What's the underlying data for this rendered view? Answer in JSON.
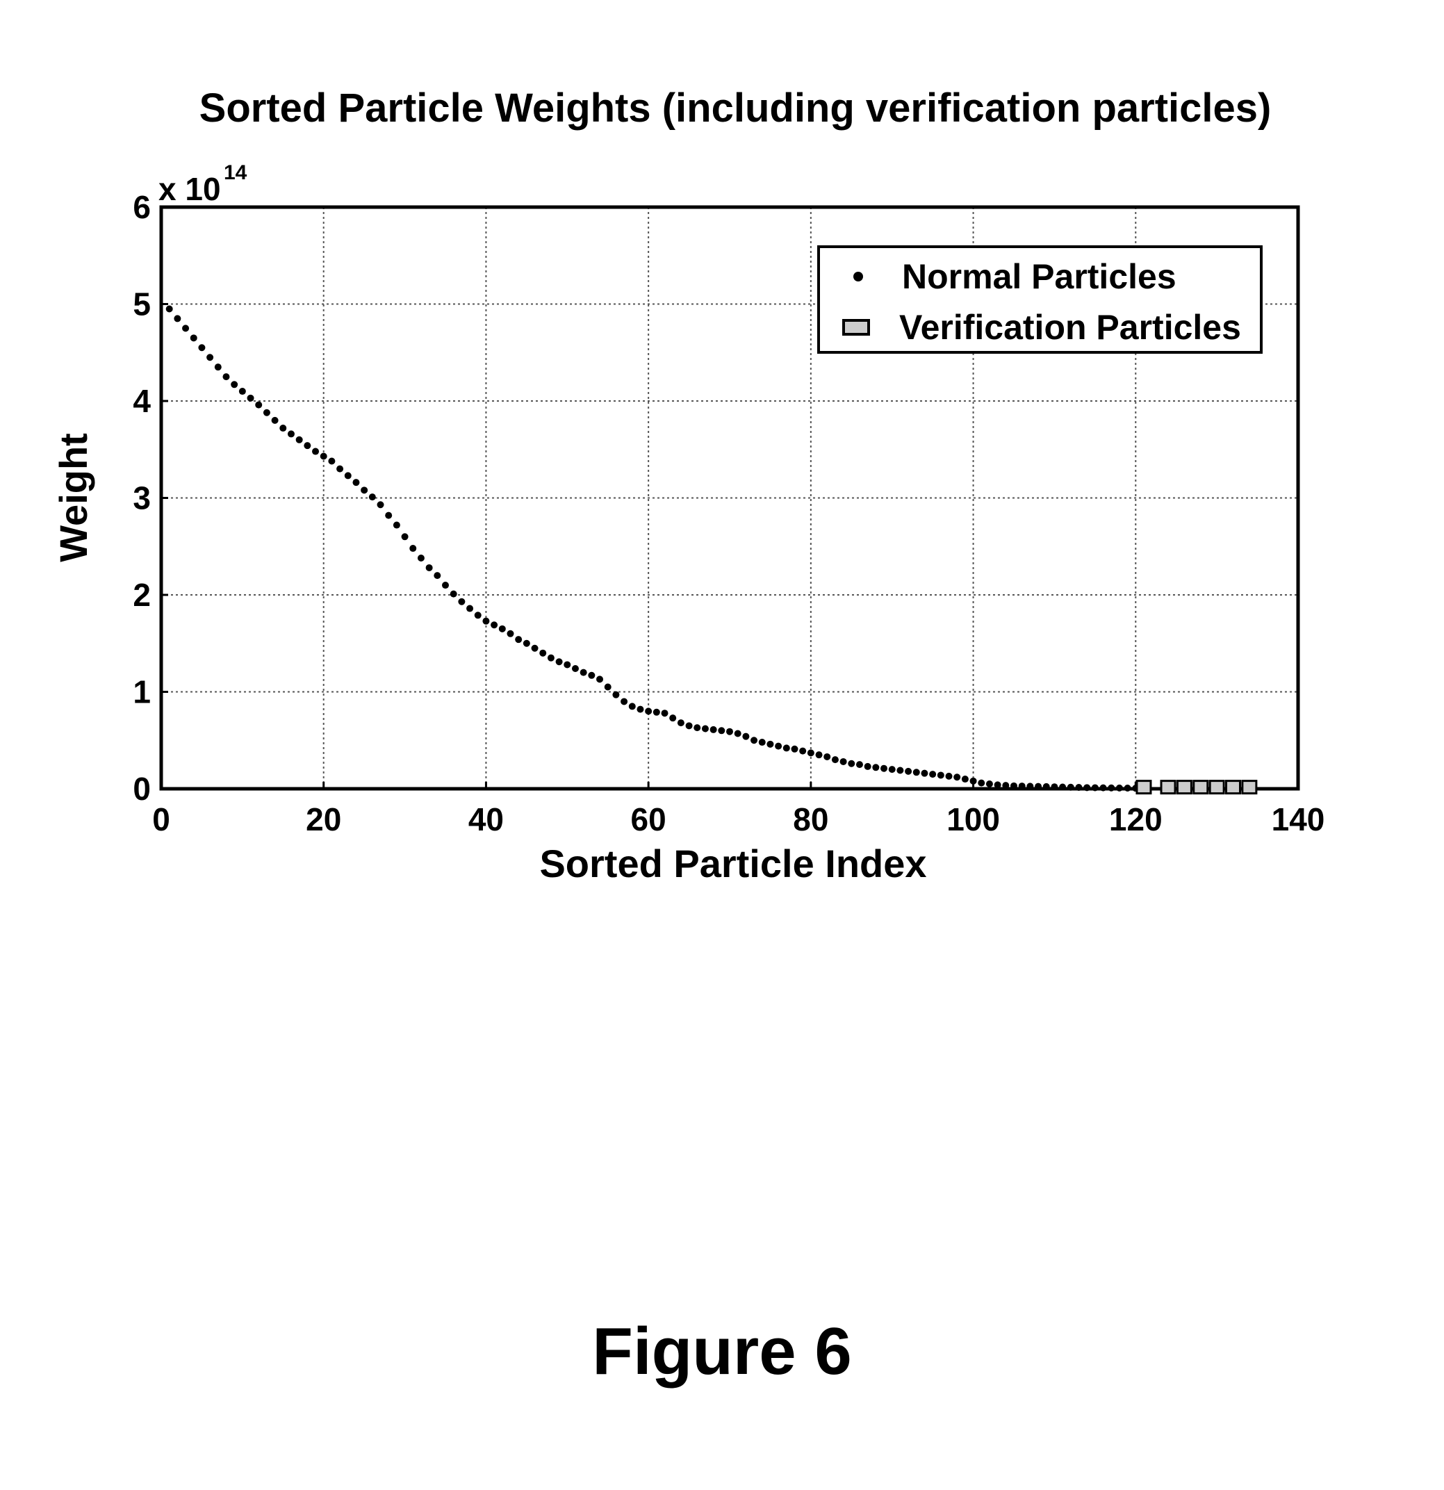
{
  "chart_data": {
    "type": "scatter",
    "title": "Sorted Particle Weights (including verification particles)",
    "xlabel": "Sorted Particle Index",
    "ylabel": "Weight",
    "y_multiplier": "x 10",
    "y_multiplier_exponent": "14",
    "xlim": [
      0,
      140
    ],
    "ylim": [
      0,
      6
    ],
    "xticks": [
      "0",
      "20",
      "40",
      "60",
      "80",
      "100",
      "120",
      "140"
    ],
    "yticks": [
      "0",
      "1",
      "2",
      "3",
      "4",
      "5",
      "6"
    ],
    "grid": true,
    "legend_position": "top-right",
    "series": [
      {
        "name": "Normal Particles",
        "marker": "dot",
        "color": "#000000",
        "x": [
          1,
          2,
          3,
          4,
          5,
          6,
          7,
          8,
          9,
          10,
          11,
          12,
          13,
          14,
          15,
          16,
          17,
          18,
          19,
          20,
          21,
          22,
          23,
          24,
          25,
          26,
          27,
          28,
          29,
          30,
          31,
          32,
          33,
          34,
          35,
          36,
          37,
          38,
          39,
          40,
          41,
          42,
          43,
          44,
          45,
          46,
          47,
          48,
          49,
          50,
          51,
          52,
          53,
          54,
          55,
          56,
          57,
          58,
          59,
          60,
          61,
          62,
          63,
          64,
          65,
          66,
          67,
          68,
          69,
          70,
          71,
          72,
          73,
          74,
          75,
          76,
          77,
          78,
          79,
          80,
          81,
          82,
          83,
          84,
          85,
          86,
          87,
          88,
          89,
          90,
          91,
          92,
          93,
          94,
          95,
          96,
          97,
          98,
          99,
          100,
          101,
          102,
          103,
          104,
          105,
          106,
          107,
          108,
          109,
          110,
          111,
          112,
          113,
          114,
          115,
          116,
          117,
          118,
          119,
          120
        ],
        "y": [
          4.95,
          4.85,
          4.75,
          4.65,
          4.55,
          4.45,
          4.35,
          4.25,
          4.17,
          4.1,
          4.03,
          3.96,
          3.88,
          3.8,
          3.72,
          3.66,
          3.6,
          3.54,
          3.48,
          3.43,
          3.38,
          3.3,
          3.23,
          3.16,
          3.08,
          3.01,
          2.93,
          2.82,
          2.72,
          2.6,
          2.48,
          2.38,
          2.28,
          2.2,
          2.1,
          2.01,
          1.93,
          1.86,
          1.79,
          1.73,
          1.69,
          1.65,
          1.6,
          1.54,
          1.5,
          1.45,
          1.4,
          1.35,
          1.31,
          1.28,
          1.24,
          1.2,
          1.17,
          1.13,
          1.05,
          0.97,
          0.9,
          0.85,
          0.82,
          0.8,
          0.79,
          0.78,
          0.73,
          0.68,
          0.65,
          0.63,
          0.62,
          0.61,
          0.6,
          0.59,
          0.57,
          0.54,
          0.5,
          0.48,
          0.46,
          0.44,
          0.42,
          0.41,
          0.39,
          0.37,
          0.35,
          0.33,
          0.3,
          0.28,
          0.26,
          0.25,
          0.23,
          0.22,
          0.21,
          0.2,
          0.19,
          0.18,
          0.17,
          0.16,
          0.15,
          0.14,
          0.13,
          0.12,
          0.1,
          0.08,
          0.06,
          0.05,
          0.04,
          0.035,
          0.03,
          0.028,
          0.026,
          0.024,
          0.022,
          0.02,
          0.018,
          0.016,
          0.014,
          0.012,
          0.011,
          0.01,
          0.009,
          0.008,
          0.007,
          0.006
        ]
      },
      {
        "name": "Verification Particles",
        "marker": "square",
        "color": "#cccccc",
        "x": [
          121,
          124,
          126,
          128,
          130,
          132,
          134
        ],
        "y": [
          0.01,
          0.01,
          0.01,
          0.01,
          0.01,
          0.01,
          0.01
        ]
      }
    ]
  },
  "figure_caption": "Figure 6"
}
